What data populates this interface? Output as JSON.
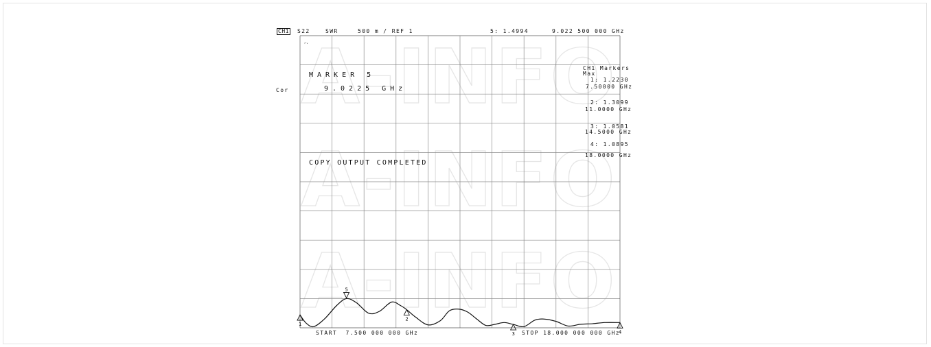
{
  "header": {
    "channel": "CH1",
    "parameter": "S22",
    "format": "SWR",
    "scale": "500 m / REF 1",
    "active_marker": "5: 1.4994",
    "active_freq": "9.022 500 000 GHz"
  },
  "left_status": "Cor",
  "top_left_note": "ᴾᵛ",
  "marker_box": {
    "title": "MARKER 5",
    "value": "9.0225 GHz"
  },
  "message": "COPY OUTPUT COMPLETED",
  "marker_table": {
    "title": "CH1 Markers",
    "subtitle": "Max",
    "entries": [
      {
        "id": "1",
        "value": "1: 1.2230",
        "freq": "7.50000 GHz"
      },
      {
        "id": "2",
        "value": "2: 1.3099",
        "freq": "11.0000 GHz"
      },
      {
        "id": "3",
        "value": "3: 1.0581",
        "freq": "14.5000 GHz"
      },
      {
        "id": "4",
        "value": "4: 1.0895",
        "freq": "18.0000 GHz"
      }
    ]
  },
  "footer": {
    "start": "START  7.500 000 000 GHz",
    "stop": "STOP 18.000 000 000 GHz"
  },
  "watermark": "A-INFO",
  "chart_data": {
    "type": "line",
    "title": "",
    "xlabel": "",
    "ylabel": "",
    "xlim": [
      7.5,
      18.0
    ],
    "ylim": [
      1.0,
      6.0
    ],
    "grid": true,
    "x": [
      7.5,
      7.7,
      7.95,
      8.3,
      8.7,
      9.0225,
      9.35,
      9.75,
      10.1,
      10.5,
      10.8,
      11.0,
      11.3,
      11.7,
      12.1,
      12.4,
      12.7,
      13.0,
      13.3,
      13.6,
      13.9,
      14.2,
      14.5,
      14.85,
      15.2,
      15.5,
      15.9,
      16.3,
      16.7,
      17.1,
      17.5,
      18.0
    ],
    "y": [
      1.22,
      1.08,
      1.02,
      1.15,
      1.38,
      1.4994,
      1.43,
      1.25,
      1.28,
      1.44,
      1.38,
      1.31,
      1.18,
      1.05,
      1.12,
      1.29,
      1.32,
      1.27,
      1.15,
      1.04,
      1.06,
      1.09,
      1.058,
      1.02,
      1.13,
      1.15,
      1.11,
      1.03,
      1.06,
      1.07,
      1.09,
      1.09
    ],
    "markers": [
      {
        "id": "1",
        "x": 7.5,
        "y": 1.223
      },
      {
        "id": "2",
        "x": 11.0,
        "y": 1.3099
      },
      {
        "id": "3",
        "x": 14.5,
        "y": 1.0581
      },
      {
        "id": "4",
        "x": 18.0,
        "y": 1.0895
      },
      {
        "id": "5",
        "x": 9.0225,
        "y": 1.4994
      }
    ]
  }
}
